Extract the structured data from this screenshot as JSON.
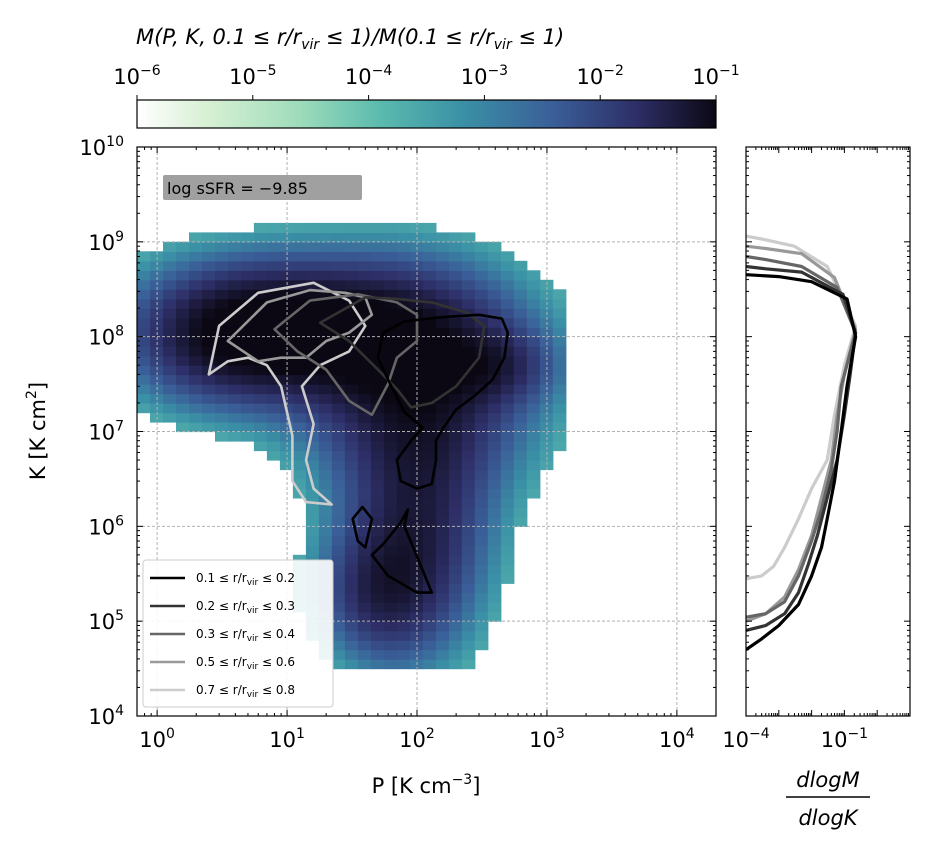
{
  "chart_data": [
    {
      "type": "heatmap",
      "colorbar": {
        "label_text": "M(P, K, 0.1 ≤ r/r",
        "label_sub": "vir",
        "label_text2": " ≤ 1)/M(0.1 ≤ r/r",
        "label_sub2": "vir",
        "label_text3": " ≤ 1)",
        "ticks": [
          {
            "base": "10",
            "exp": "−6"
          },
          {
            "base": "10",
            "exp": "−5"
          },
          {
            "base": "10",
            "exp": "−4"
          },
          {
            "base": "10",
            "exp": "−3"
          },
          {
            "base": "10",
            "exp": "−2"
          },
          {
            "base": "10",
            "exp": "−1"
          }
        ],
        "range": [
          1e-06,
          0.1
        ],
        "scale": "log",
        "colormap": "mako_r"
      },
      "xlabel": {
        "text": "P [K cm",
        "exp": "−3",
        "close": "]"
      },
      "ylabel": {
        "text": "K [K cm",
        "exp": "2",
        "close": "]"
      },
      "x_scale": "log",
      "y_scale": "log",
      "xlim": [
        0.7,
        20000
      ],
      "ylim": [
        10000,
        10000000000.0
      ],
      "grid": true,
      "x_ticks": [
        {
          "value": 1,
          "base": "10",
          "exp": "0"
        },
        {
          "value": 10,
          "base": "10",
          "exp": "1"
        },
        {
          "value": 100,
          "base": "10",
          "exp": "2"
        },
        {
          "value": 1000,
          "base": "10",
          "exp": "3"
        },
        {
          "value": 10000,
          "base": "10",
          "exp": "4"
        }
      ],
      "y_ticks": [
        {
          "value": 10000,
          "base": "10",
          "exp": "4"
        },
        {
          "value": 100000,
          "base": "10",
          "exp": "5"
        },
        {
          "value": 1000000,
          "base": "10",
          "exp": "6"
        },
        {
          "value": 10000000,
          "base": "10",
          "exp": "7"
        },
        {
          "value": 100000000,
          "base": "10",
          "exp": "8"
        },
        {
          "value": 1000000000,
          "base": "10",
          "exp": "9"
        },
        {
          "value": 10000000000,
          "base": "10",
          "exp": "10"
        }
      ],
      "annotation": "log sSFR = −9.85",
      "legend_position": "lower-left",
      "series": [
        {
          "name": "0.1 ≤ r/r_vir ≤ 0.2",
          "color": "#000000",
          "contours": [
            [
              [
                55,
                110000000.0
              ],
              [
                80,
                145000000.0
              ],
              [
                150,
                160000000.0
              ],
              [
                300,
                170000000.0
              ],
              [
                450,
                155000000.0
              ],
              [
                500,
                110000000.0
              ],
              [
                470,
                60000000.0
              ],
              [
                380,
                35000000.0
              ],
              [
                280,
                24000000.0
              ],
              [
                200,
                17000000.0
              ],
              [
                160,
                11000000.0
              ],
              [
                140,
                8000000.0
              ],
              [
                140,
                5000000.0
              ],
              [
                130,
                2800000.0
              ],
              [
                100,
                2500000.0
              ],
              [
                75,
                3000000.0
              ],
              [
                70,
                5000000.0
              ],
              [
                90,
                8000000.0
              ],
              [
                110,
                11000000.0
              ],
              [
                80,
                16000000.0
              ],
              [
                60,
                35000000.0
              ],
              [
                50,
                60000000.0
              ],
              [
                55,
                110000000.0
              ]
            ],
            [
              [
                45,
                500000.0
              ],
              [
                55,
                650000.0
              ],
              [
                75,
                1100000.0
              ],
              [
                85,
                1500000.0
              ],
              [
                80,
                1000000.0
              ],
              [
                110,
                350000.0
              ],
              [
                130,
                200000.0
              ],
              [
                100,
                200000.0
              ],
              [
                60,
                300000.0
              ],
              [
                45,
                500000.0
              ]
            ],
            [
              [
                40,
                600000.0
              ],
              [
                45,
                1200000.0
              ],
              [
                38,
                1600000.0
              ],
              [
                32,
                1200000.0
              ],
              [
                35,
                700000.0
              ],
              [
                40,
                600000.0
              ]
            ]
          ]
        },
        {
          "name": "0.2 ≤ r/r_vir ≤ 0.3",
          "color": "#333333",
          "contours": [
            [
              [
                18,
                140000000.0
              ],
              [
                40,
                260000000.0
              ],
              [
                70,
                250000000.0
              ],
              [
                130,
                230000000.0
              ],
              [
                240,
                180000000.0
              ],
              [
                330,
                130000000.0
              ],
              [
                300,
                60000000.0
              ],
              [
                200,
                30000000.0
              ],
              [
                130,
                20000000.0
              ],
              [
                90,
                18000000.0
              ],
              [
                70,
                28000000.0
              ],
              [
                50,
                45000000.0
              ],
              [
                30,
                90000000.0
              ],
              [
                18,
                140000000.0
              ]
            ]
          ]
        },
        {
          "name": "0.3 ≤ r/r_vir ≤ 0.4",
          "color": "#666666",
          "contours": [
            [
              [
                8,
                120000000.0
              ],
              [
                15,
                240000000.0
              ],
              [
                35,
                280000000.0
              ],
              [
                70,
                230000000.0
              ],
              [
                100,
                170000000.0
              ],
              [
                100,
                90000000.0
              ],
              [
                70,
                60000000.0
              ],
              [
                60,
                32000000.0
              ],
              [
                45,
                15000000.0
              ],
              [
                30,
                21000000.0
              ],
              [
                20,
                45000000.0
              ],
              [
                12,
                70000000.0
              ],
              [
                8,
                120000000.0
              ]
            ]
          ]
        },
        {
          "name": "0.5 ≤ r/r_vir ≤ 0.6",
          "color": "#999999",
          "contours": [
            [
              [
                3.5,
                90000000.0
              ],
              [
                7,
                230000000.0
              ],
              [
                15,
                310000000.0
              ],
              [
                28,
                290000000.0
              ],
              [
                40,
                260000000.0
              ],
              [
                45,
                170000000.0
              ],
              [
                30,
                110000000.0
              ],
              [
                20,
                90000000.0
              ],
              [
                14,
                60000000.0
              ],
              [
                9,
                60000000.0
              ],
              [
                6,
                55000000.0
              ],
              [
                3.5,
                90000000.0
              ]
            ]
          ]
        },
        {
          "name": "0.7 ≤ r/r_vir ≤ 0.8",
          "color": "#cccccc",
          "contours": [
            [
              [
                2.5,
                40000000.0
              ],
              [
                3,
                130000000.0
              ],
              [
                6,
                290000000.0
              ],
              [
                16,
                370000000.0
              ],
              [
                30,
                240000000.0
              ],
              [
                40,
                130000000.0
              ],
              [
                30,
                70000000.0
              ],
              [
                18,
                50000000.0
              ],
              [
                13,
                30000000.0
              ],
              [
                16,
                12000000.0
              ],
              [
                14,
                5000000.0
              ],
              [
                16,
                2500000.0
              ],
              [
                22,
                1700000.0
              ],
              [
                14,
                1800000.0
              ],
              [
                11,
                3000000.0
              ],
              [
                11,
                9000000.0
              ],
              [
                9,
                30000000.0
              ],
              [
                7,
                50000000.0
              ],
              [
                5,
                60000000.0
              ],
              [
                3.5,
                55000000.0
              ],
              [
                2.5,
                40000000.0
              ]
            ]
          ]
        }
      ]
    },
    {
      "type": "line",
      "xlabel_num": "dlogM",
      "xlabel_den": "dlogK",
      "x_scale": "log",
      "y_scale": "log",
      "xlim": [
        0.0001,
        10
      ],
      "ylim": [
        10000,
        10000000000.0
      ],
      "x_ticks": [
        {
          "value": 0.0001,
          "base": "10",
          "exp": "−4"
        },
        {
          "value": 0.1,
          "base": "10",
          "exp": "−1"
        }
      ],
      "series": [
        {
          "name": "0.1 ≤ r/r_vir ≤ 0.2",
          "color": "#000000",
          "points": [
            [
              0.0001,
              50000.0
            ],
            [
              0.0003,
              65000.0
            ],
            [
              0.001,
              90000.0
            ],
            [
              0.004,
              150000.0
            ],
            [
              0.01,
              300000.0
            ],
            [
              0.02,
              600000.0
            ],
            [
              0.03,
              1200000.0
            ],
            [
              0.05,
              3000000.0
            ],
            [
              0.08,
              10000000.0
            ],
            [
              0.12,
              30000000.0
            ],
            [
              0.22,
              100000000.0
            ],
            [
              0.12,
              250000000.0
            ],
            [
              0.01,
              380000000.0
            ],
            [
              0.001,
              430000000.0
            ],
            [
              0.0001,
              450000000.0
            ]
          ]
        },
        {
          "name": "0.2 ≤ r/r_vir ≤ 0.3",
          "color": "#333333",
          "points": [
            [
              0.0001,
              80000.0
            ],
            [
              0.0004,
              90000.0
            ],
            [
              0.0015,
              120000.0
            ],
            [
              0.004,
              200000.0
            ],
            [
              0.008,
              400000.0
            ],
            [
              0.015,
              800000.0
            ],
            [
              0.03,
              2000000.0
            ],
            [
              0.06,
              5000000.0
            ],
            [
              0.1,
              15000000.0
            ],
            [
              0.15,
              40000000.0
            ],
            [
              0.22,
              110000000.0
            ],
            [
              0.09,
              280000000.0
            ],
            [
              0.005,
              480000000.0
            ],
            [
              0.0004,
              520000000.0
            ],
            [
              0.0001,
              550000000.0
            ]
          ]
        },
        {
          "name": "0.3 ≤ r/r_vir ≤ 0.4",
          "color": "#666666",
          "points": [
            [
              0.0001,
              110000.0
            ],
            [
              0.0004,
              120000.0
            ],
            [
              0.0015,
              160000.0
            ],
            [
              0.004,
              300000.0
            ],
            [
              0.01,
              700000.0
            ],
            [
              0.02,
              1500000.0
            ],
            [
              0.04,
              4000000.0
            ],
            [
              0.06,
              10000000.0
            ],
            [
              0.08,
              30000000.0
            ],
            [
              0.22,
              110000000.0
            ],
            [
              0.06,
              330000000.0
            ],
            [
              0.005,
              550000000.0
            ],
            [
              0.0004,
              650000000.0
            ],
            [
              0.0001,
              700000000.0
            ]
          ]
        },
        {
          "name": "0.5 ≤ r/r_vir ≤ 0.6",
          "color": "#999999",
          "points": [
            [
              0.0001,
              100000.0
            ],
            [
              0.0004,
              120000.0
            ],
            [
              0.0015,
              180000.0
            ],
            [
              0.004,
              350000.0
            ],
            [
              0.01,
              800000.0
            ],
            [
              0.02,
              2000000.0
            ],
            [
              0.04,
              5000000.0
            ],
            [
              0.06,
              15000000.0
            ],
            [
              0.1,
              40000000.0
            ],
            [
              0.22,
              120000000.0
            ],
            [
              0.05,
              420000000.0
            ],
            [
              0.005,
              750000000.0
            ],
            [
              0.0004,
              850000000.0
            ],
            [
              0.0001,
              900000000.0
            ]
          ]
        },
        {
          "name": "0.7 ≤ r/r_vir ≤ 0.8",
          "color": "#cccccc",
          "points": [
            [
              0.0001,
              280000.0
            ],
            [
              0.0003,
              300000.0
            ],
            [
              0.0007,
              380000.0
            ],
            [
              0.0015,
              600000.0
            ],
            [
              0.004,
              1200000.0
            ],
            [
              0.01,
              2500000.0
            ],
            [
              0.03,
              5000000.0
            ],
            [
              0.05,
              15000000.0
            ],
            [
              0.1,
              50000000.0
            ],
            [
              0.22,
              130000000.0
            ],
            [
              0.03,
              550000000.0
            ],
            [
              0.003,
              900000000.0
            ],
            [
              0.0004,
              1050000000.0
            ],
            [
              0.0001,
              1150000000.0
            ]
          ]
        }
      ]
    }
  ]
}
